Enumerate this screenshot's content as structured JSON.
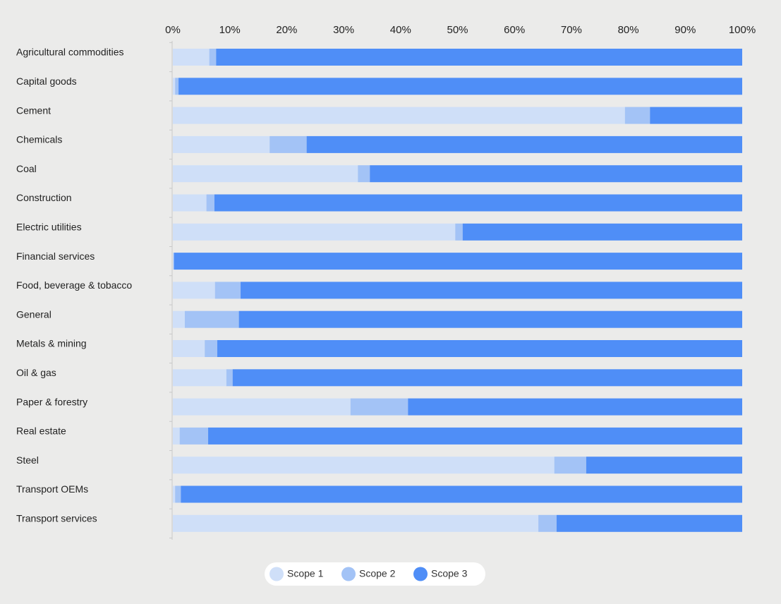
{
  "chart_data": {
    "type": "stacked-bar-horizontal",
    "categories": [
      "Agricultural commodities",
      "Capital goods",
      "Cement",
      "Chemicals",
      "Coal",
      "Construction",
      "Electric utilities",
      "Financial services",
      "Food, beverage & tobacco",
      "General",
      "Metals & mining",
      "Oil & gas",
      "Paper & forestry",
      "Real estate",
      "Steel",
      "Transport OEMs",
      "Transport services"
    ],
    "series": [
      {
        "name": "Scope 1",
        "color": "#cfdff8",
        "values": [
          6.4,
          0.4,
          79.4,
          17.0,
          32.5,
          5.9,
          49.6,
          0.1,
          7.4,
          2.1,
          5.6,
          9.4,
          31.2,
          1.2,
          67.0,
          0.4,
          64.2
        ]
      },
      {
        "name": "Scope 2",
        "color": "#a3c3f6",
        "values": [
          1.2,
          0.6,
          4.4,
          6.5,
          2.1,
          1.4,
          1.3,
          0.1,
          4.5,
          9.5,
          2.2,
          1.1,
          10.1,
          5.0,
          5.6,
          1.0,
          3.2
        ]
      },
      {
        "name": "Scope 3",
        "color": "#4f8ef7",
        "values": [
          92.4,
          99.0,
          16.2,
          76.5,
          65.4,
          92.7,
          49.1,
          99.8,
          88.1,
          88.4,
          92.2,
          89.5,
          58.7,
          93.8,
          27.4,
          98.6,
          32.6
        ]
      }
    ],
    "xlim": [
      0,
      100
    ],
    "xticks": [
      {
        "value": 0,
        "label": "0%"
      },
      {
        "value": 10,
        "label": "10%"
      },
      {
        "value": 20,
        "label": "20%"
      },
      {
        "value": 30,
        "label": "30%"
      },
      {
        "value": 40,
        "label": "40%"
      },
      {
        "value": 50,
        "label": "50%"
      },
      {
        "value": 60,
        "label": "60%"
      },
      {
        "value": 70,
        "label": "70%"
      },
      {
        "value": 80,
        "label": "80%"
      },
      {
        "value": 90,
        "label": "90%"
      },
      {
        "value": 100,
        "label": "100%"
      }
    ],
    "grid": false,
    "legend": "bottom"
  }
}
